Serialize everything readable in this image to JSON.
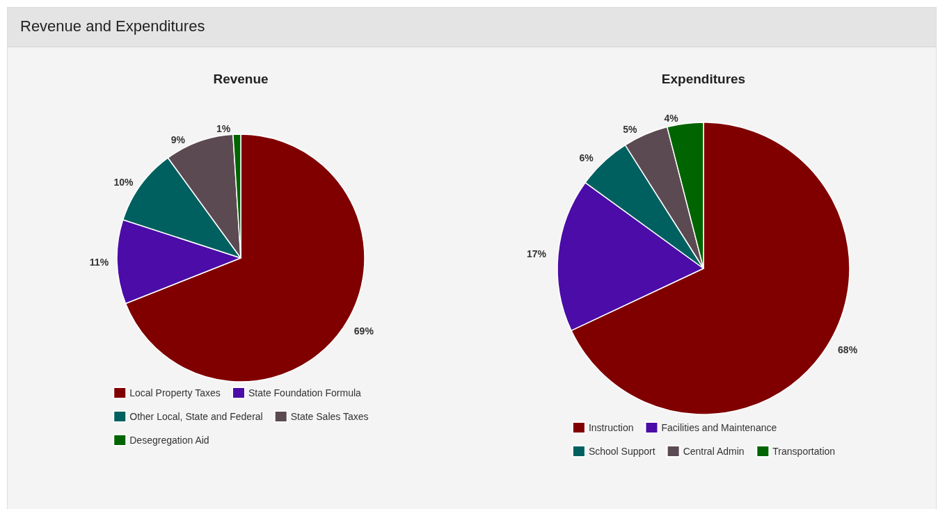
{
  "chart_data": [
    {
      "type": "other",
      "title": "Revenue and Expenditures"
    },
    {
      "type": "pie",
      "title": "Revenue",
      "categories": [
        "Local Property Taxes",
        "State Foundation Formula",
        "Other Local, State and Federal",
        "State Sales Taxes",
        "Desegregation Aid"
      ],
      "values": [
        69,
        11,
        10,
        9,
        1
      ],
      "value_labels": [
        "69%",
        "11%",
        "10%",
        "9%",
        "1%"
      ],
      "colors": [
        "#800000",
        "#4b0ca8",
        "#006060",
        "#5c4a52",
        "#006400"
      ],
      "legend": "bottom"
    },
    {
      "type": "pie",
      "title": "Expenditures",
      "categories": [
        "Instruction",
        "Facilities and Maintenance",
        "School Support",
        "Central Admin",
        "Transportation"
      ],
      "values": [
        68,
        17,
        6,
        5,
        4
      ],
      "value_labels": [
        "68%",
        "17%",
        "6%",
        "5%",
        "4%"
      ],
      "colors": [
        "#800000",
        "#4b0ca8",
        "#006060",
        "#5c4a52",
        "#006400"
      ],
      "legend": "bottom"
    }
  ]
}
